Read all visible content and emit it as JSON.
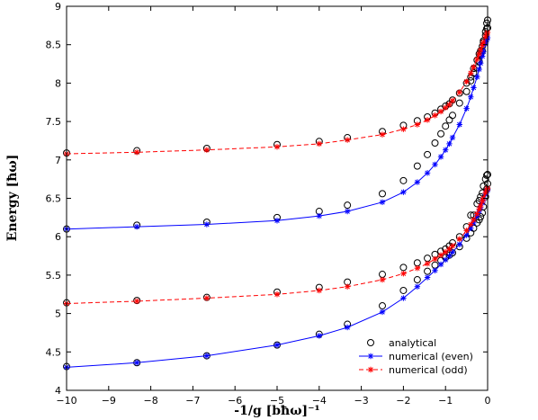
{
  "chart_data": {
    "type": "line",
    "title": "",
    "xlabel": "-1/g [bħω]⁻¹",
    "ylabel": "Energy [ħω]",
    "xlim": [
      -10,
      0
    ],
    "ylim": [
      4,
      9
    ],
    "x_ticks": [
      -10,
      -9,
      -8,
      -7,
      -6,
      -5,
      -4,
      -3,
      -2,
      -1,
      0
    ],
    "y_ticks": [
      4,
      4.5,
      5,
      5.5,
      6,
      6.5,
      7,
      7.5,
      8,
      8.5,
      9
    ],
    "grid": false,
    "legend_position": "bottom-right",
    "legend": [
      {
        "label": "analytical",
        "marker": "circle",
        "color": "#000000",
        "line": "none"
      },
      {
        "label": "numerical (even)",
        "marker": "star",
        "color": "#0000ff",
        "line": "solid"
      },
      {
        "label": "numerical (odd)",
        "marker": "star",
        "color": "#ff0000",
        "line": "dashed"
      }
    ],
    "series": [
      {
        "name": "analytical",
        "style": "markers",
        "color": "#000000",
        "marker": "circle",
        "groups": [
          {
            "x": [
              -10,
              -8.33,
              -6.67,
              -5,
              -4,
              -3.33,
              -2.5,
              -2,
              -1.67,
              -1.43,
              -1.25,
              -1.11,
              -1,
              -0.909,
              -0.833,
              -0.667,
              -0.5,
              -0.4,
              -0.333,
              -0.25,
              -0.2,
              -0.167,
              -0.125,
              -0.1,
              -0.05,
              -0.02,
              0
            ],
            "y": [
              4.31,
              4.36,
              4.45,
              4.59,
              4.73,
              4.86,
              5.1,
              5.3,
              5.44,
              5.55,
              5.63,
              5.69,
              5.73,
              5.76,
              5.79,
              5.87,
              5.98,
              6.05,
              6.11,
              6.18,
              6.22,
              6.26,
              6.31,
              6.39,
              6.52,
              6.62,
              6.69
            ]
          },
          {
            "x": [
              -10,
              -8.33,
              -6.67,
              -5,
              -4,
              -3.33,
              -2.5,
              -2,
              -1.67,
              -1.43,
              -1.25,
              -1.11,
              -1,
              -0.909,
              -0.833,
              -0.667,
              -0.5,
              -0.4,
              -0.333,
              -0.25,
              -0.2,
              -0.167,
              -0.125,
              -0.1,
              -0.05,
              -0.02,
              0
            ],
            "y": [
              5.14,
              5.17,
              5.21,
              5.28,
              5.34,
              5.41,
              5.51,
              5.6,
              5.66,
              5.72,
              5.77,
              5.81,
              5.84,
              5.88,
              5.92,
              6.0,
              6.13,
              6.28,
              6.28,
              6.43,
              6.47,
              6.52,
              6.57,
              6.66,
              6.75,
              6.8,
              6.81
            ]
          },
          {
            "x": [
              -10,
              -8.33,
              -6.67,
              -5,
              -4,
              -3.33,
              -2.5,
              -2,
              -1.67,
              -1.43,
              -1.25,
              -1.11,
              -1,
              -0.909,
              -0.833,
              -0.667,
              -0.5,
              -0.4,
              -0.333,
              -0.25,
              -0.2,
              -0.167,
              -0.125,
              -0.1,
              -0.05,
              -0.02,
              0
            ],
            "y": [
              6.1,
              6.15,
              6.19,
              6.25,
              6.33,
              6.41,
              6.56,
              6.73,
              6.92,
              7.07,
              7.22,
              7.34,
              7.44,
              7.52,
              7.58,
              7.74,
              7.89,
              8.03,
              8.13,
              8.2,
              8.28,
              8.37,
              8.42,
              8.53,
              8.62,
              8.71,
              8.72
            ]
          },
          {
            "x": [
              -10,
              -8.33,
              -6.67,
              -5,
              -4,
              -3.33,
              -2.5,
              -2,
              -1.67,
              -1.43,
              -1.25,
              -1.11,
              -1,
              -0.909,
              -0.833,
              -0.667,
              -0.5,
              -0.4,
              -0.333,
              -0.25,
              -0.2,
              -0.167,
              -0.125,
              -0.1,
              -0.05,
              -0.02,
              0
            ],
            "y": [
              7.09,
              7.12,
              7.15,
              7.2,
              7.24,
              7.29,
              7.37,
              7.45,
              7.51,
              7.56,
              7.61,
              7.66,
              7.7,
              7.73,
              7.78,
              7.87,
              8.0,
              8.08,
              8.19,
              8.3,
              8.38,
              8.42,
              8.48,
              8.55,
              8.67,
              8.78,
              8.82
            ]
          }
        ]
      },
      {
        "name": "numerical (even)",
        "style": "line+markers",
        "color": "#0000ff",
        "marker": "star",
        "dash": "solid",
        "groups": [
          {
            "x": [
              -10,
              -8.33,
              -6.67,
              -5,
              -4,
              -3.33,
              -2.5,
              -2,
              -1.67,
              -1.43,
              -1.25,
              -1.11,
              -1,
              -0.909,
              -0.833,
              -0.667,
              -0.5,
              -0.4,
              -0.333,
              -0.25,
              -0.2,
              -0.167,
              -0.125,
              -0.1,
              -0.05,
              -0.02,
              0
            ],
            "y": [
              4.3,
              4.36,
              4.45,
              4.59,
              4.71,
              4.82,
              5.02,
              5.2,
              5.35,
              5.47,
              5.56,
              5.64,
              5.7,
              5.75,
              5.8,
              5.9,
              6.02,
              6.11,
              6.18,
              6.27,
              6.33,
              6.38,
              6.44,
              6.48,
              6.55,
              6.59,
              6.61
            ]
          },
          {
            "x": [
              -10,
              -8.33,
              -6.67,
              -5,
              -4,
              -3.33,
              -2.5,
              -2,
              -1.67,
              -1.43,
              -1.25,
              -1.11,
              -1,
              -0.909,
              -0.833,
              -0.667,
              -0.5,
              -0.4,
              -0.333,
              -0.25,
              -0.2,
              -0.167,
              -0.125,
              -0.1,
              -0.05,
              -0.02,
              0
            ],
            "y": [
              6.1,
              6.13,
              6.16,
              6.21,
              6.27,
              6.33,
              6.45,
              6.58,
              6.71,
              6.83,
              6.94,
              7.04,
              7.13,
              7.21,
              7.29,
              7.46,
              7.67,
              7.82,
              7.94,
              8.08,
              8.18,
              8.26,
              8.35,
              8.41,
              8.51,
              8.56,
              8.59
            ]
          }
        ]
      },
      {
        "name": "numerical (odd)",
        "style": "line+markers",
        "color": "#ff0000",
        "marker": "star",
        "dash": "dashed",
        "groups": [
          {
            "x": [
              -10,
              -8.33,
              -6.67,
              -5,
              -4,
              -3.33,
              -2.5,
              -2,
              -1.67,
              -1.43,
              -1.25,
              -1.11,
              -1,
              -0.909,
              -0.833,
              -0.667,
              -0.5,
              -0.4,
              -0.333,
              -0.25,
              -0.2,
              -0.167,
              -0.125,
              -0.1,
              -0.05,
              -0.02,
              0
            ],
            "y": [
              5.13,
              5.16,
              5.2,
              5.25,
              5.3,
              5.35,
              5.44,
              5.52,
              5.59,
              5.65,
              5.71,
              5.76,
              5.8,
              5.84,
              5.88,
              5.97,
              6.08,
              6.16,
              6.22,
              6.3,
              6.36,
              6.4,
              6.46,
              6.5,
              6.57,
              6.61,
              6.63
            ]
          },
          {
            "x": [
              -10,
              -8.33,
              -6.67,
              -5,
              -4,
              -3.33,
              -2.5,
              -2,
              -1.67,
              -1.43,
              -1.25,
              -1.11,
              -1,
              -0.909,
              -0.833,
              -0.667,
              -0.5,
              -0.4,
              -0.333,
              -0.25,
              -0.2,
              -0.167,
              -0.125,
              -0.1,
              -0.05,
              -0.02,
              0
            ],
            "y": [
              7.08,
              7.1,
              7.13,
              7.17,
              7.21,
              7.26,
              7.33,
              7.4,
              7.46,
              7.52,
              7.58,
              7.63,
              7.68,
              7.72,
              7.77,
              7.88,
              8.02,
              8.13,
              8.21,
              8.31,
              8.38,
              8.43,
              8.49,
              8.53,
              8.6,
              8.64,
              8.66
            ]
          }
        ]
      }
    ]
  }
}
